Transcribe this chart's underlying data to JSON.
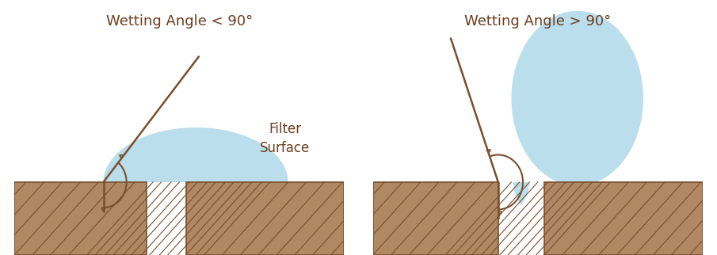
{
  "bg_color": "#ffffff",
  "brown_fill": "#b08862",
  "brown_edge": "#7a4f2e",
  "hatch_line_color": "#7a4f2e",
  "water_color": "#aed9e8",
  "water_alpha": 0.85,
  "title1": "Wetting Angle < 90°",
  "title2": "Wetting Angle > 90°",
  "text_color": "#6b3d1e",
  "title_fontsize": 13,
  "label_fontsize": 12,
  "line_color": "#7a4f2e",
  "line_lw": 1.8,
  "arc_lw": 1.5,
  "tri_size": 0.012,
  "tri_lw": 1.2
}
